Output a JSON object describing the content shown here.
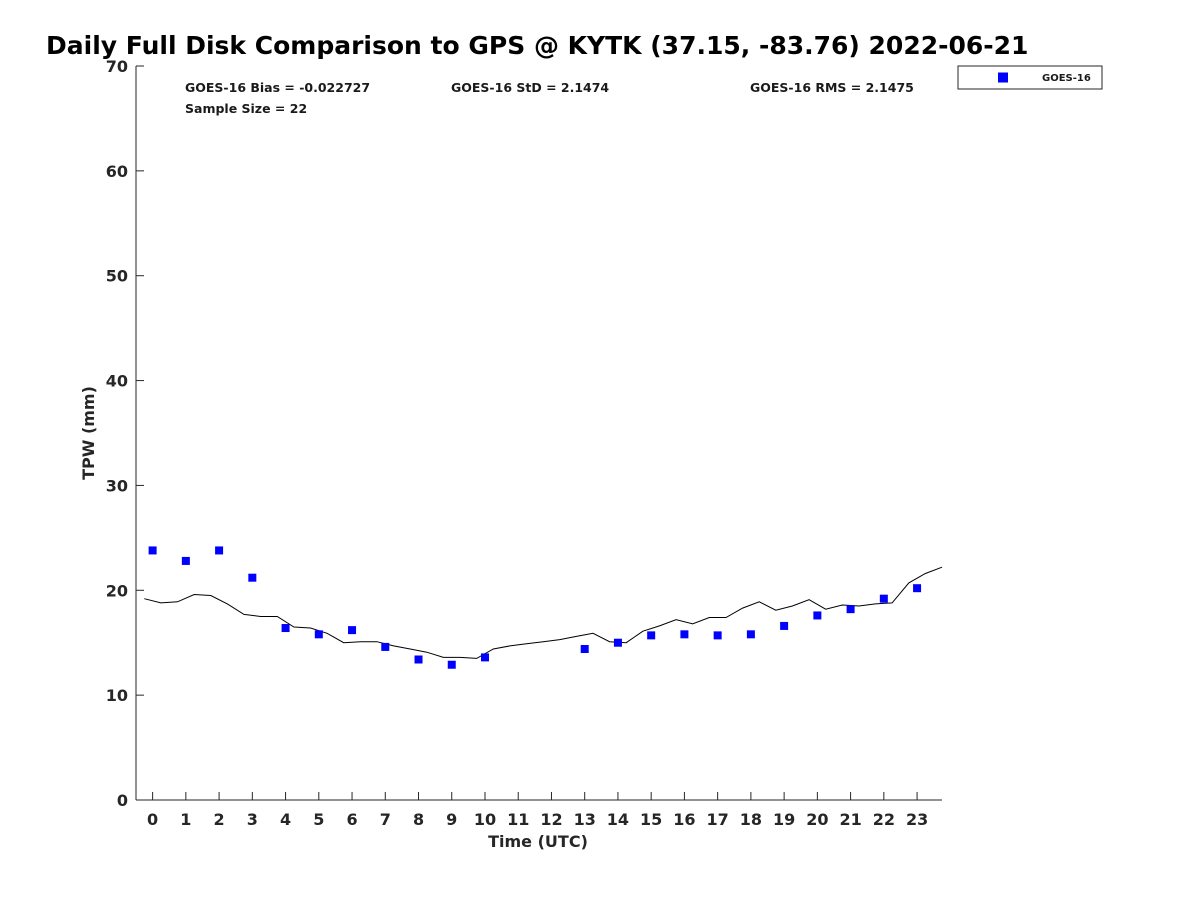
{
  "chart_data": {
    "type": "scatter",
    "title": "Daily Full Disk Comparison to GPS @ KYTK (37.15, -83.76) 2022-06-21",
    "xlabel": "Time (UTC)",
    "ylabel": "TPW (mm)",
    "xlim": [
      -0.5,
      23.75
    ],
    "ylim": [
      0,
      70
    ],
    "x_ticks": [
      0,
      1,
      2,
      3,
      4,
      5,
      6,
      7,
      8,
      9,
      10,
      11,
      12,
      13,
      14,
      15,
      16,
      17,
      18,
      19,
      20,
      21,
      22,
      23
    ],
    "y_ticks": [
      0,
      10,
      20,
      30,
      40,
      50,
      60,
      70
    ],
    "grid": false,
    "legend_position": "top-right-outside",
    "stats": {
      "bias": "GOES-16 Bias = -0.022727",
      "std": "GOES-16 StD = 2.1474",
      "rms": "GOES-16 RMS = 2.1475",
      "sample_size": "Sample Size = 22"
    },
    "series": [
      {
        "name": "GOES-16",
        "type": "scatter",
        "marker": "square",
        "color": "#0000ff",
        "x": [
          0,
          1,
          2,
          3,
          4,
          5,
          6,
          7,
          8,
          9,
          10,
          13,
          14,
          15,
          16,
          17,
          18,
          19,
          20,
          21,
          22,
          23
        ],
        "y": [
          23.8,
          22.8,
          23.8,
          21.2,
          16.4,
          15.8,
          16.2,
          14.6,
          13.4,
          12.9,
          13.6,
          14.4,
          15.0,
          15.7,
          15.8,
          15.7,
          15.8,
          16.6,
          17.6,
          18.2,
          19.2,
          20.2
        ]
      },
      {
        "type": "line",
        "color": "#000000",
        "x": [
          -0.25,
          0.25,
          0.75,
          1.25,
          1.75,
          2.25,
          2.75,
          3.25,
          3.75,
          4.25,
          4.75,
          5.25,
          5.75,
          6.25,
          6.75,
          7.25,
          7.75,
          8.25,
          8.75,
          9.25,
          9.75,
          10.25,
          10.75,
          11.25,
          11.75,
          12.25,
          12.75,
          13.25,
          13.75,
          14.25,
          14.75,
          15.25,
          15.75,
          16.25,
          16.75,
          17.25,
          17.75,
          18.25,
          18.75,
          19.25,
          19.75,
          20.25,
          20.75,
          21.25,
          21.75,
          22.25,
          22.75,
          23.25,
          23.75
        ],
        "y": [
          19.2,
          18.8,
          18.9,
          19.6,
          19.5,
          18.7,
          17.7,
          17.5,
          17.5,
          16.5,
          16.4,
          15.9,
          15.0,
          15.1,
          15.1,
          14.7,
          14.4,
          14.1,
          13.6,
          13.6,
          13.5,
          14.4,
          14.7,
          14.9,
          15.1,
          15.3,
          15.6,
          15.9,
          15.1,
          15.0,
          16.1,
          16.6,
          17.2,
          16.8,
          17.4,
          17.4,
          18.3,
          18.9,
          18.1,
          18.5,
          19.1,
          18.2,
          18.6,
          18.5,
          18.7,
          18.8,
          20.7,
          21.6,
          22.2
        ]
      }
    ]
  }
}
